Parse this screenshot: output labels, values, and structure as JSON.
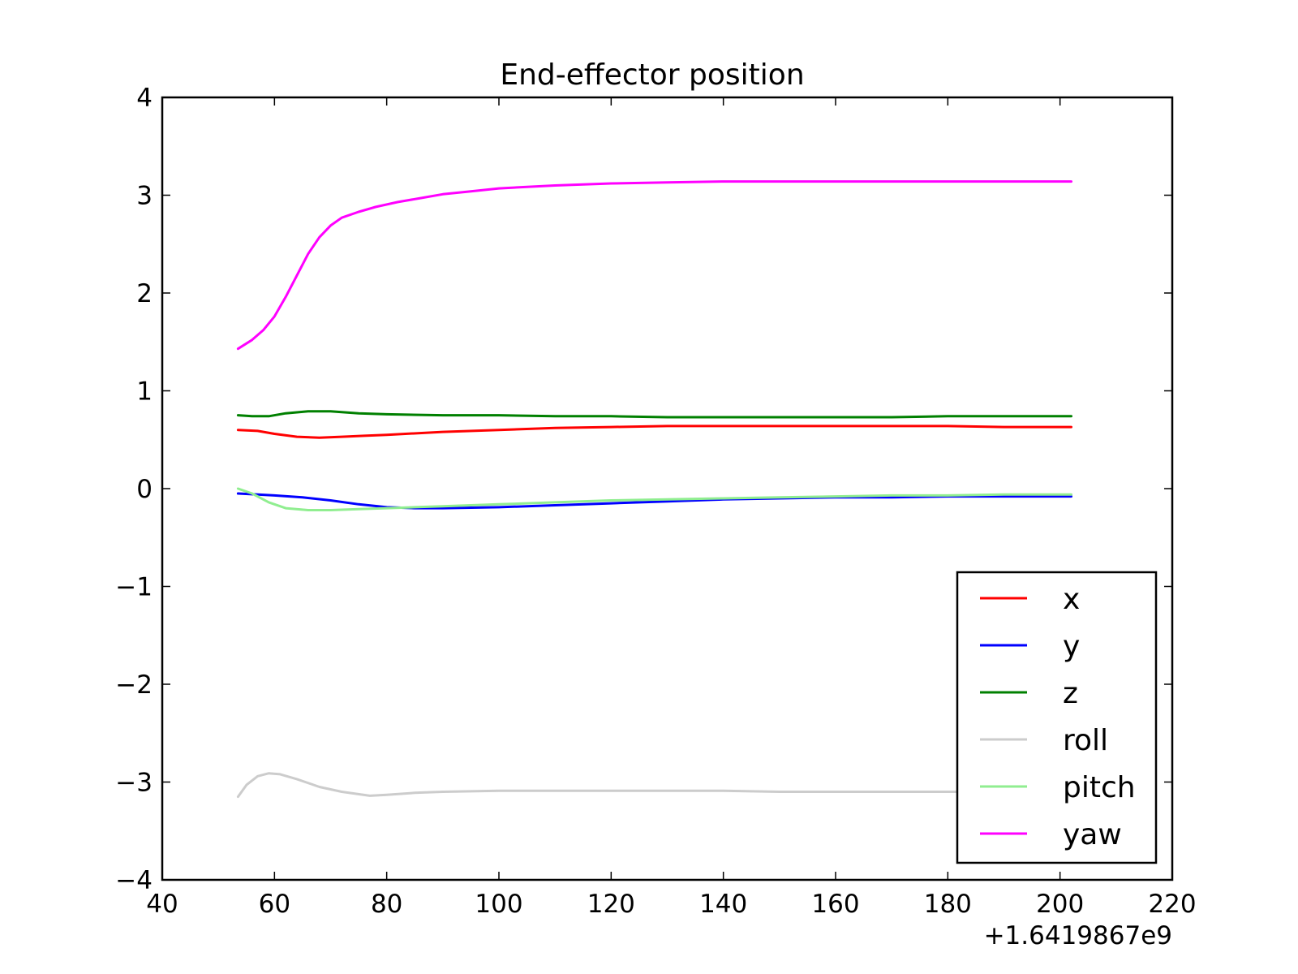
{
  "chart_data": {
    "type": "line",
    "title": "End-effector position",
    "xlabel": "",
    "ylabel": "",
    "x_offset_label": "+1.6419867e9",
    "xlim": [
      40,
      220
    ],
    "ylim": [
      -4,
      4
    ],
    "xticks": [
      40,
      60,
      80,
      100,
      120,
      140,
      160,
      180,
      200,
      220
    ],
    "xtick_labels": [
      "40",
      "60",
      "80",
      "100",
      "120",
      "140",
      "160",
      "180",
      "200",
      "220"
    ],
    "yticks": [
      -4,
      -3,
      -2,
      -1,
      0,
      1,
      2,
      3,
      4
    ],
    "ytick_labels": [
      "−4",
      "−3",
      "−2",
      "−1",
      "0",
      "1",
      "2",
      "3",
      "4"
    ],
    "grid": false,
    "legend_position": "lower-right",
    "series": [
      {
        "name": "x",
        "color": "#ff0000",
        "points": [
          [
            53.5,
            0.6
          ],
          [
            57,
            0.59
          ],
          [
            60,
            0.56
          ],
          [
            64,
            0.53
          ],
          [
            68,
            0.52
          ],
          [
            72,
            0.53
          ],
          [
            76,
            0.54
          ],
          [
            80,
            0.55
          ],
          [
            90,
            0.58
          ],
          [
            100,
            0.6
          ],
          [
            110,
            0.62
          ],
          [
            120,
            0.63
          ],
          [
            130,
            0.64
          ],
          [
            140,
            0.64
          ],
          [
            150,
            0.64
          ],
          [
            160,
            0.64
          ],
          [
            170,
            0.64
          ],
          [
            180,
            0.64
          ],
          [
            190,
            0.63
          ],
          [
            202,
            0.63
          ]
        ]
      },
      {
        "name": "y",
        "color": "#0000ff",
        "points": [
          [
            53.5,
            -0.05
          ],
          [
            57,
            -0.06
          ],
          [
            60,
            -0.07
          ],
          [
            65,
            -0.09
          ],
          [
            70,
            -0.12
          ],
          [
            75,
            -0.16
          ],
          [
            80,
            -0.19
          ],
          [
            85,
            -0.2
          ],
          [
            90,
            -0.2
          ],
          [
            100,
            -0.19
          ],
          [
            110,
            -0.17
          ],
          [
            120,
            -0.15
          ],
          [
            130,
            -0.13
          ],
          [
            140,
            -0.11
          ],
          [
            150,
            -0.1
          ],
          [
            160,
            -0.09
          ],
          [
            170,
            -0.09
          ],
          [
            180,
            -0.08
          ],
          [
            190,
            -0.08
          ],
          [
            202,
            -0.08
          ]
        ]
      },
      {
        "name": "z",
        "color": "#008000",
        "points": [
          [
            53.5,
            0.75
          ],
          [
            56,
            0.74
          ],
          [
            59,
            0.74
          ],
          [
            62,
            0.77
          ],
          [
            66,
            0.79
          ],
          [
            70,
            0.79
          ],
          [
            75,
            0.77
          ],
          [
            80,
            0.76
          ],
          [
            90,
            0.75
          ],
          [
            100,
            0.75
          ],
          [
            110,
            0.74
          ],
          [
            120,
            0.74
          ],
          [
            130,
            0.73
          ],
          [
            140,
            0.73
          ],
          [
            150,
            0.73
          ],
          [
            160,
            0.73
          ],
          [
            170,
            0.73
          ],
          [
            180,
            0.74
          ],
          [
            190,
            0.74
          ],
          [
            202,
            0.74
          ]
        ]
      },
      {
        "name": "roll",
        "color": "#cccccc",
        "points": [
          [
            53.5,
            -3.15
          ],
          [
            55,
            -3.03
          ],
          [
            57,
            -2.94
          ],
          [
            59,
            -2.91
          ],
          [
            61,
            -2.92
          ],
          [
            64,
            -2.97
          ],
          [
            68,
            -3.05
          ],
          [
            72,
            -3.1
          ],
          [
            77,
            -3.14
          ],
          [
            80,
            -3.13
          ],
          [
            85,
            -3.11
          ],
          [
            90,
            -3.1
          ],
          [
            100,
            -3.09
          ],
          [
            110,
            -3.09
          ],
          [
            120,
            -3.09
          ],
          [
            130,
            -3.09
          ],
          [
            140,
            -3.09
          ],
          [
            150,
            -3.1
          ],
          [
            160,
            -3.1
          ],
          [
            170,
            -3.1
          ],
          [
            180,
            -3.1
          ],
          [
            190,
            -3.1
          ],
          [
            202,
            -3.1
          ]
        ]
      },
      {
        "name": "pitch",
        "color": "#90ee90",
        "points": [
          [
            53.5,
            0.0
          ],
          [
            56,
            -0.05
          ],
          [
            59,
            -0.14
          ],
          [
            62,
            -0.2
          ],
          [
            66,
            -0.22
          ],
          [
            70,
            -0.22
          ],
          [
            75,
            -0.21
          ],
          [
            80,
            -0.2
          ],
          [
            85,
            -0.19
          ],
          [
            90,
            -0.18
          ],
          [
            100,
            -0.16
          ],
          [
            110,
            -0.14
          ],
          [
            120,
            -0.12
          ],
          [
            130,
            -0.11
          ],
          [
            140,
            -0.1
          ],
          [
            150,
            -0.09
          ],
          [
            160,
            -0.08
          ],
          [
            170,
            -0.07
          ],
          [
            180,
            -0.07
          ],
          [
            190,
            -0.06
          ],
          [
            202,
            -0.06
          ]
        ]
      },
      {
        "name": "yaw",
        "color": "#ff00ff",
        "points": [
          [
            53.5,
            1.43
          ],
          [
            56,
            1.52
          ],
          [
            58,
            1.62
          ],
          [
            60,
            1.76
          ],
          [
            62,
            1.96
          ],
          [
            64,
            2.18
          ],
          [
            66,
            2.4
          ],
          [
            68,
            2.57
          ],
          [
            70,
            2.69
          ],
          [
            72,
            2.77
          ],
          [
            75,
            2.83
          ],
          [
            78,
            2.88
          ],
          [
            82,
            2.93
          ],
          [
            86,
            2.97
          ],
          [
            90,
            3.01
          ],
          [
            95,
            3.04
          ],
          [
            100,
            3.07
          ],
          [
            110,
            3.1
          ],
          [
            120,
            3.12
          ],
          [
            130,
            3.13
          ],
          [
            140,
            3.14
          ],
          [
            160,
            3.14
          ],
          [
            180,
            3.14
          ],
          [
            202,
            3.14
          ]
        ]
      }
    ]
  }
}
